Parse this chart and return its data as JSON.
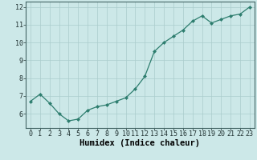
{
  "x": [
    0,
    1,
    2,
    3,
    4,
    5,
    6,
    7,
    8,
    9,
    10,
    11,
    12,
    13,
    14,
    15,
    16,
    17,
    18,
    19,
    20,
    21,
    22,
    23
  ],
  "y": [
    6.7,
    7.1,
    6.6,
    6.0,
    5.6,
    5.7,
    6.2,
    6.4,
    6.5,
    6.7,
    6.9,
    7.4,
    8.1,
    9.5,
    10.0,
    10.35,
    10.7,
    11.2,
    11.5,
    11.1,
    11.3,
    11.5,
    11.6,
    12.0
  ],
  "xlim": [
    -0.5,
    23.5
  ],
  "ylim": [
    5.2,
    12.3
  ],
  "yticks": [
    6,
    7,
    8,
    9,
    10,
    11,
    12
  ],
  "xticks": [
    0,
    1,
    2,
    3,
    4,
    5,
    6,
    7,
    8,
    9,
    10,
    11,
    12,
    13,
    14,
    15,
    16,
    17,
    18,
    19,
    20,
    21,
    22,
    23
  ],
  "xlabel": "Humidex (Indice chaleur)",
  "line_color": "#2d7d6e",
  "marker": "D",
  "marker_size": 2.0,
  "bg_color": "#cce8e8",
  "grid_color": "#aacccc",
  "xlabel_fontsize": 7.5,
  "tick_fontsize": 6.0
}
